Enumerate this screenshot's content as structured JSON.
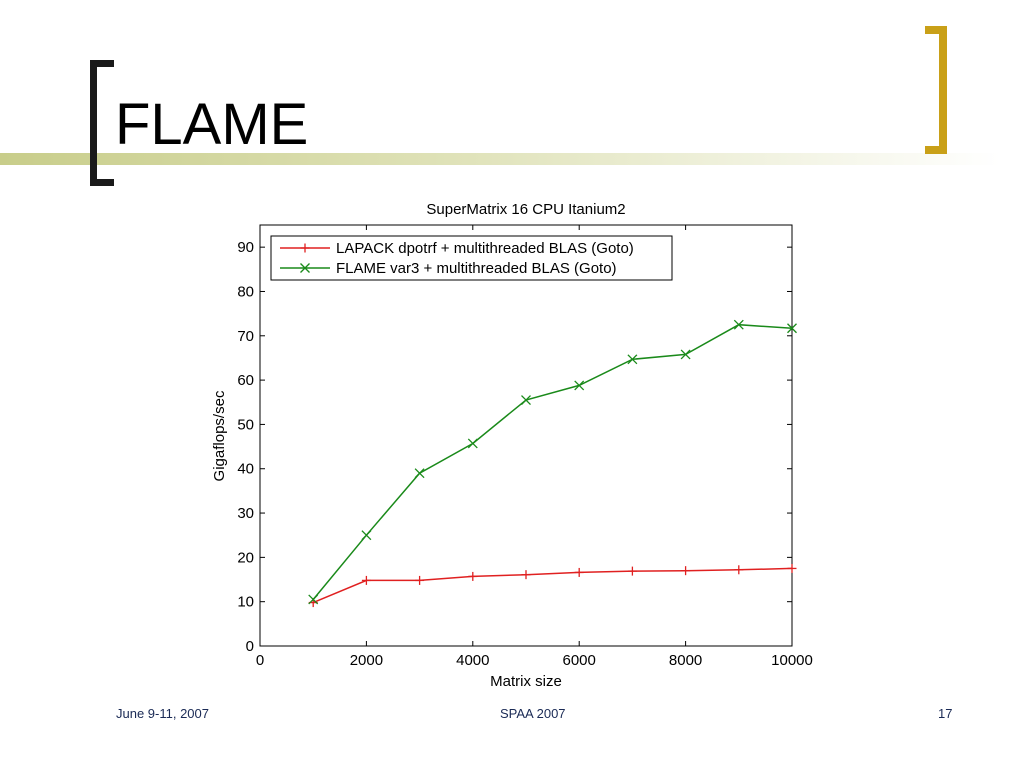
{
  "slide": {
    "title": "FLAME",
    "footer_left": "June 9-11, 2007",
    "footer_center": "SPAA 2007",
    "footer_right": "17"
  },
  "colors": {
    "bracket_dark": "#1a1a1a",
    "bracket_gold": "#c9a018",
    "title_bar": "#c8cd8a",
    "series_lapack": "#e02020",
    "series_flame": "#1a8a1a"
  },
  "chart_data": {
    "type": "line",
    "title": "SuperMatrix 16 CPU Itanium2",
    "xlabel": "Matrix size",
    "ylabel": "Gigaflops/sec",
    "xlim": [
      0,
      10000
    ],
    "ylim": [
      0,
      95
    ],
    "x_ticks": [
      0,
      2000,
      4000,
      6000,
      8000,
      10000
    ],
    "y_ticks": [
      0,
      10,
      20,
      30,
      40,
      50,
      60,
      70,
      80,
      90
    ],
    "grid": false,
    "legend_position": "top-left",
    "x": [
      1000,
      2000,
      3000,
      4000,
      5000,
      6000,
      7000,
      8000,
      9000,
      10000
    ],
    "series": [
      {
        "name": "LAPACK dpotrf + multithreaded BLAS (Goto)",
        "marker": "plus",
        "color": "#e02020",
        "values": [
          9.8,
          14.8,
          14.8,
          15.7,
          16.1,
          16.6,
          16.9,
          17.0,
          17.2,
          17.5
        ]
      },
      {
        "name": "FLAME var3 + multithreaded BLAS (Goto)",
        "marker": "x",
        "color": "#1a8a1a",
        "values": [
          10.5,
          25.0,
          39.0,
          45.7,
          55.5,
          58.8,
          64.7,
          65.8,
          72.5,
          71.7
        ]
      }
    ]
  }
}
